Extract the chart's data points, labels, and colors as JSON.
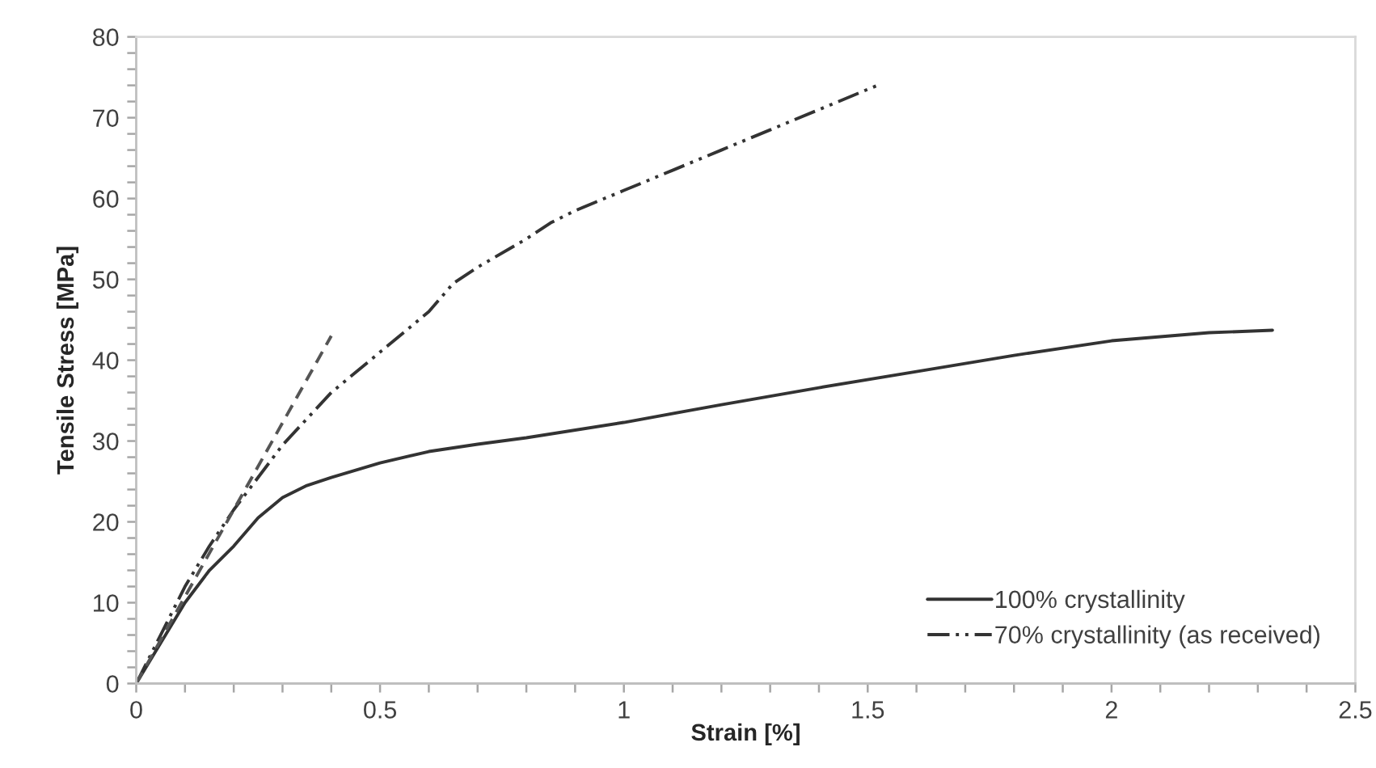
{
  "chart_data": {
    "type": "line",
    "xlabel": "Strain [%]",
    "ylabel": "Tensile Stress [MPa]",
    "xlim": [
      0,
      2.5
    ],
    "ylim": [
      0,
      80
    ],
    "xticks": [
      0,
      {
        "value": 0.1,
        "label": null
      },
      {
        "value": 0.2,
        "label": null
      },
      {
        "value": 0.3,
        "label": null
      },
      {
        "value": 0.4,
        "label": null
      },
      0.5,
      {
        "value": 0.6,
        "label": null
      },
      {
        "value": 0.7,
        "label": null
      },
      {
        "value": 0.8,
        "label": null
      },
      {
        "value": 0.9,
        "label": null
      },
      1,
      {
        "value": 1.1,
        "label": null
      },
      {
        "value": 1.2,
        "label": null
      },
      {
        "value": 1.3,
        "label": null
      },
      {
        "value": 1.4,
        "label": null
      },
      1.5,
      {
        "value": 1.6,
        "label": null
      },
      {
        "value": 1.7,
        "label": null
      },
      {
        "value": 1.8,
        "label": null
      },
      {
        "value": 1.9,
        "label": null
      },
      2,
      {
        "value": 2.1,
        "label": null
      },
      {
        "value": 2.2,
        "label": null
      },
      {
        "value": 2.3,
        "label": null
      },
      {
        "value": 2.4,
        "label": null
      },
      2.5
    ],
    "yticks": [
      0,
      {
        "value": 2,
        "label": null
      },
      {
        "value": 4,
        "label": null
      },
      {
        "value": 6,
        "label": null
      },
      {
        "value": 8,
        "label": null
      },
      10,
      {
        "value": 12,
        "label": null
      },
      {
        "value": 14,
        "label": null
      },
      {
        "value": 16,
        "label": null
      },
      {
        "value": 18,
        "label": null
      },
      20,
      {
        "value": 22,
        "label": null
      },
      {
        "value": 24,
        "label": null
      },
      {
        "value": 26,
        "label": null
      },
      {
        "value": 28,
        "label": null
      },
      30,
      {
        "value": 32,
        "label": null
      },
      {
        "value": 34,
        "label": null
      },
      {
        "value": 36,
        "label": null
      },
      {
        "value": 38,
        "label": null
      },
      40,
      {
        "value": 42,
        "label": null
      },
      {
        "value": 44,
        "label": null
      },
      {
        "value": 46,
        "label": null
      },
      {
        "value": 48,
        "label": null
      },
      50,
      {
        "value": 52,
        "label": null
      },
      {
        "value": 54,
        "label": null
      },
      {
        "value": 56,
        "label": null
      },
      {
        "value": 58,
        "label": null
      },
      60,
      {
        "value": 62,
        "label": null
      },
      {
        "value": 64,
        "label": null
      },
      {
        "value": 66,
        "label": null
      },
      {
        "value": 68,
        "label": null
      },
      70,
      {
        "value": 72,
        "label": null
      },
      {
        "value": 74,
        "label": null
      },
      {
        "value": 76,
        "label": null
      },
      {
        "value": 78,
        "label": null
      },
      80
    ],
    "grid": false,
    "legend": "bottom right",
    "marker": "none",
    "series": [
      {
        "name": "100% crystallinity",
        "color": "#333333",
        "line_style": "solid",
        "x": [
          0,
          0.05,
          0.1,
          0.15,
          0.2,
          0.25,
          0.3,
          0.35,
          0.4,
          0.5,
          0.6,
          0.7,
          0.8,
          1.0,
          1.2,
          1.4,
          1.6,
          1.8,
          2.0,
          2.2,
          2.33
        ],
        "values": [
          0,
          5,
          10,
          14,
          17,
          20.5,
          23,
          24.5,
          25.5,
          27.3,
          28.7,
          29.6,
          30.4,
          32.3,
          34.5,
          36.6,
          38.6,
          40.6,
          42.4,
          43.4,
          43.7
        ]
      },
      {
        "name": "70% crystallinity (as received)",
        "color": "#333333",
        "line_style": "dashdotdot",
        "x": [
          0,
          0.05,
          0.1,
          0.15,
          0.2,
          0.25,
          0.3,
          0.4,
          0.5,
          0.6,
          0.65,
          0.7,
          0.8,
          0.85,
          0.9,
          1.0,
          1.1,
          1.2,
          1.3,
          1.4,
          1.52
        ],
        "values": [
          0,
          6,
          12,
          17,
          21.5,
          25.5,
          29.5,
          36,
          41,
          46,
          49.5,
          51.5,
          55,
          57,
          58.5,
          61,
          63.5,
          66,
          68.5,
          71,
          74
        ]
      },
      {
        "color": "#555555",
        "line_style": "dashed",
        "x": [
          0,
          0.4
        ],
        "values": [
          0,
          43
        ]
      }
    ]
  }
}
